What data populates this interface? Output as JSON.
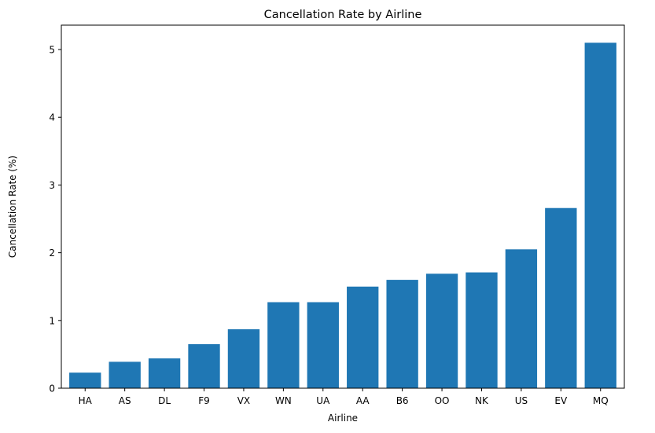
{
  "chart_data": {
    "type": "bar",
    "title": "Cancellation Rate by Airline",
    "xlabel": "Airline",
    "ylabel": "Cancellation Rate (%)",
    "categories": [
      "HA",
      "AS",
      "DL",
      "F9",
      "VX",
      "WN",
      "UA",
      "AA",
      "B6",
      "OO",
      "NK",
      "US",
      "EV",
      "MQ"
    ],
    "values": [
      0.23,
      0.39,
      0.44,
      0.65,
      0.87,
      1.27,
      1.27,
      1.5,
      1.6,
      1.69,
      1.71,
      2.05,
      2.66,
      5.1
    ],
    "ylim": [
      0,
      5.36
    ],
    "yticks": [
      0,
      1,
      2,
      3,
      4,
      5
    ],
    "grid": false,
    "bar_color": "#1f77b4"
  }
}
